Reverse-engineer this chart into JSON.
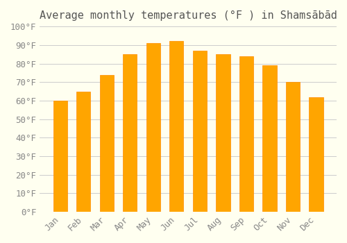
{
  "title": "Average monthly temperatures (°F ) in Shamsābād",
  "months": [
    "Jan",
    "Feb",
    "Mar",
    "Apr",
    "May",
    "Jun",
    "Jul",
    "Aug",
    "Sep",
    "Oct",
    "Nov",
    "Dec"
  ],
  "values": [
    60,
    65,
    74,
    85,
    91,
    92,
    87,
    85,
    84,
    79,
    70,
    62
  ],
  "bar_color": "#FFA500",
  "bar_edge_color": "#FF8C00",
  "background_color": "#FFFFF0",
  "ylim": [
    0,
    100
  ],
  "yticks": [
    0,
    10,
    20,
    30,
    40,
    50,
    60,
    70,
    80,
    90,
    100
  ],
  "ytick_labels": [
    "0°F",
    "10°F",
    "20°F",
    "30°F",
    "40°F",
    "50°F",
    "60°F",
    "70°F",
    "80°F",
    "90°F",
    "100°F"
  ],
  "title_fontsize": 11,
  "tick_fontsize": 9,
  "grid_color": "#cccccc",
  "bar_width": 0.6
}
